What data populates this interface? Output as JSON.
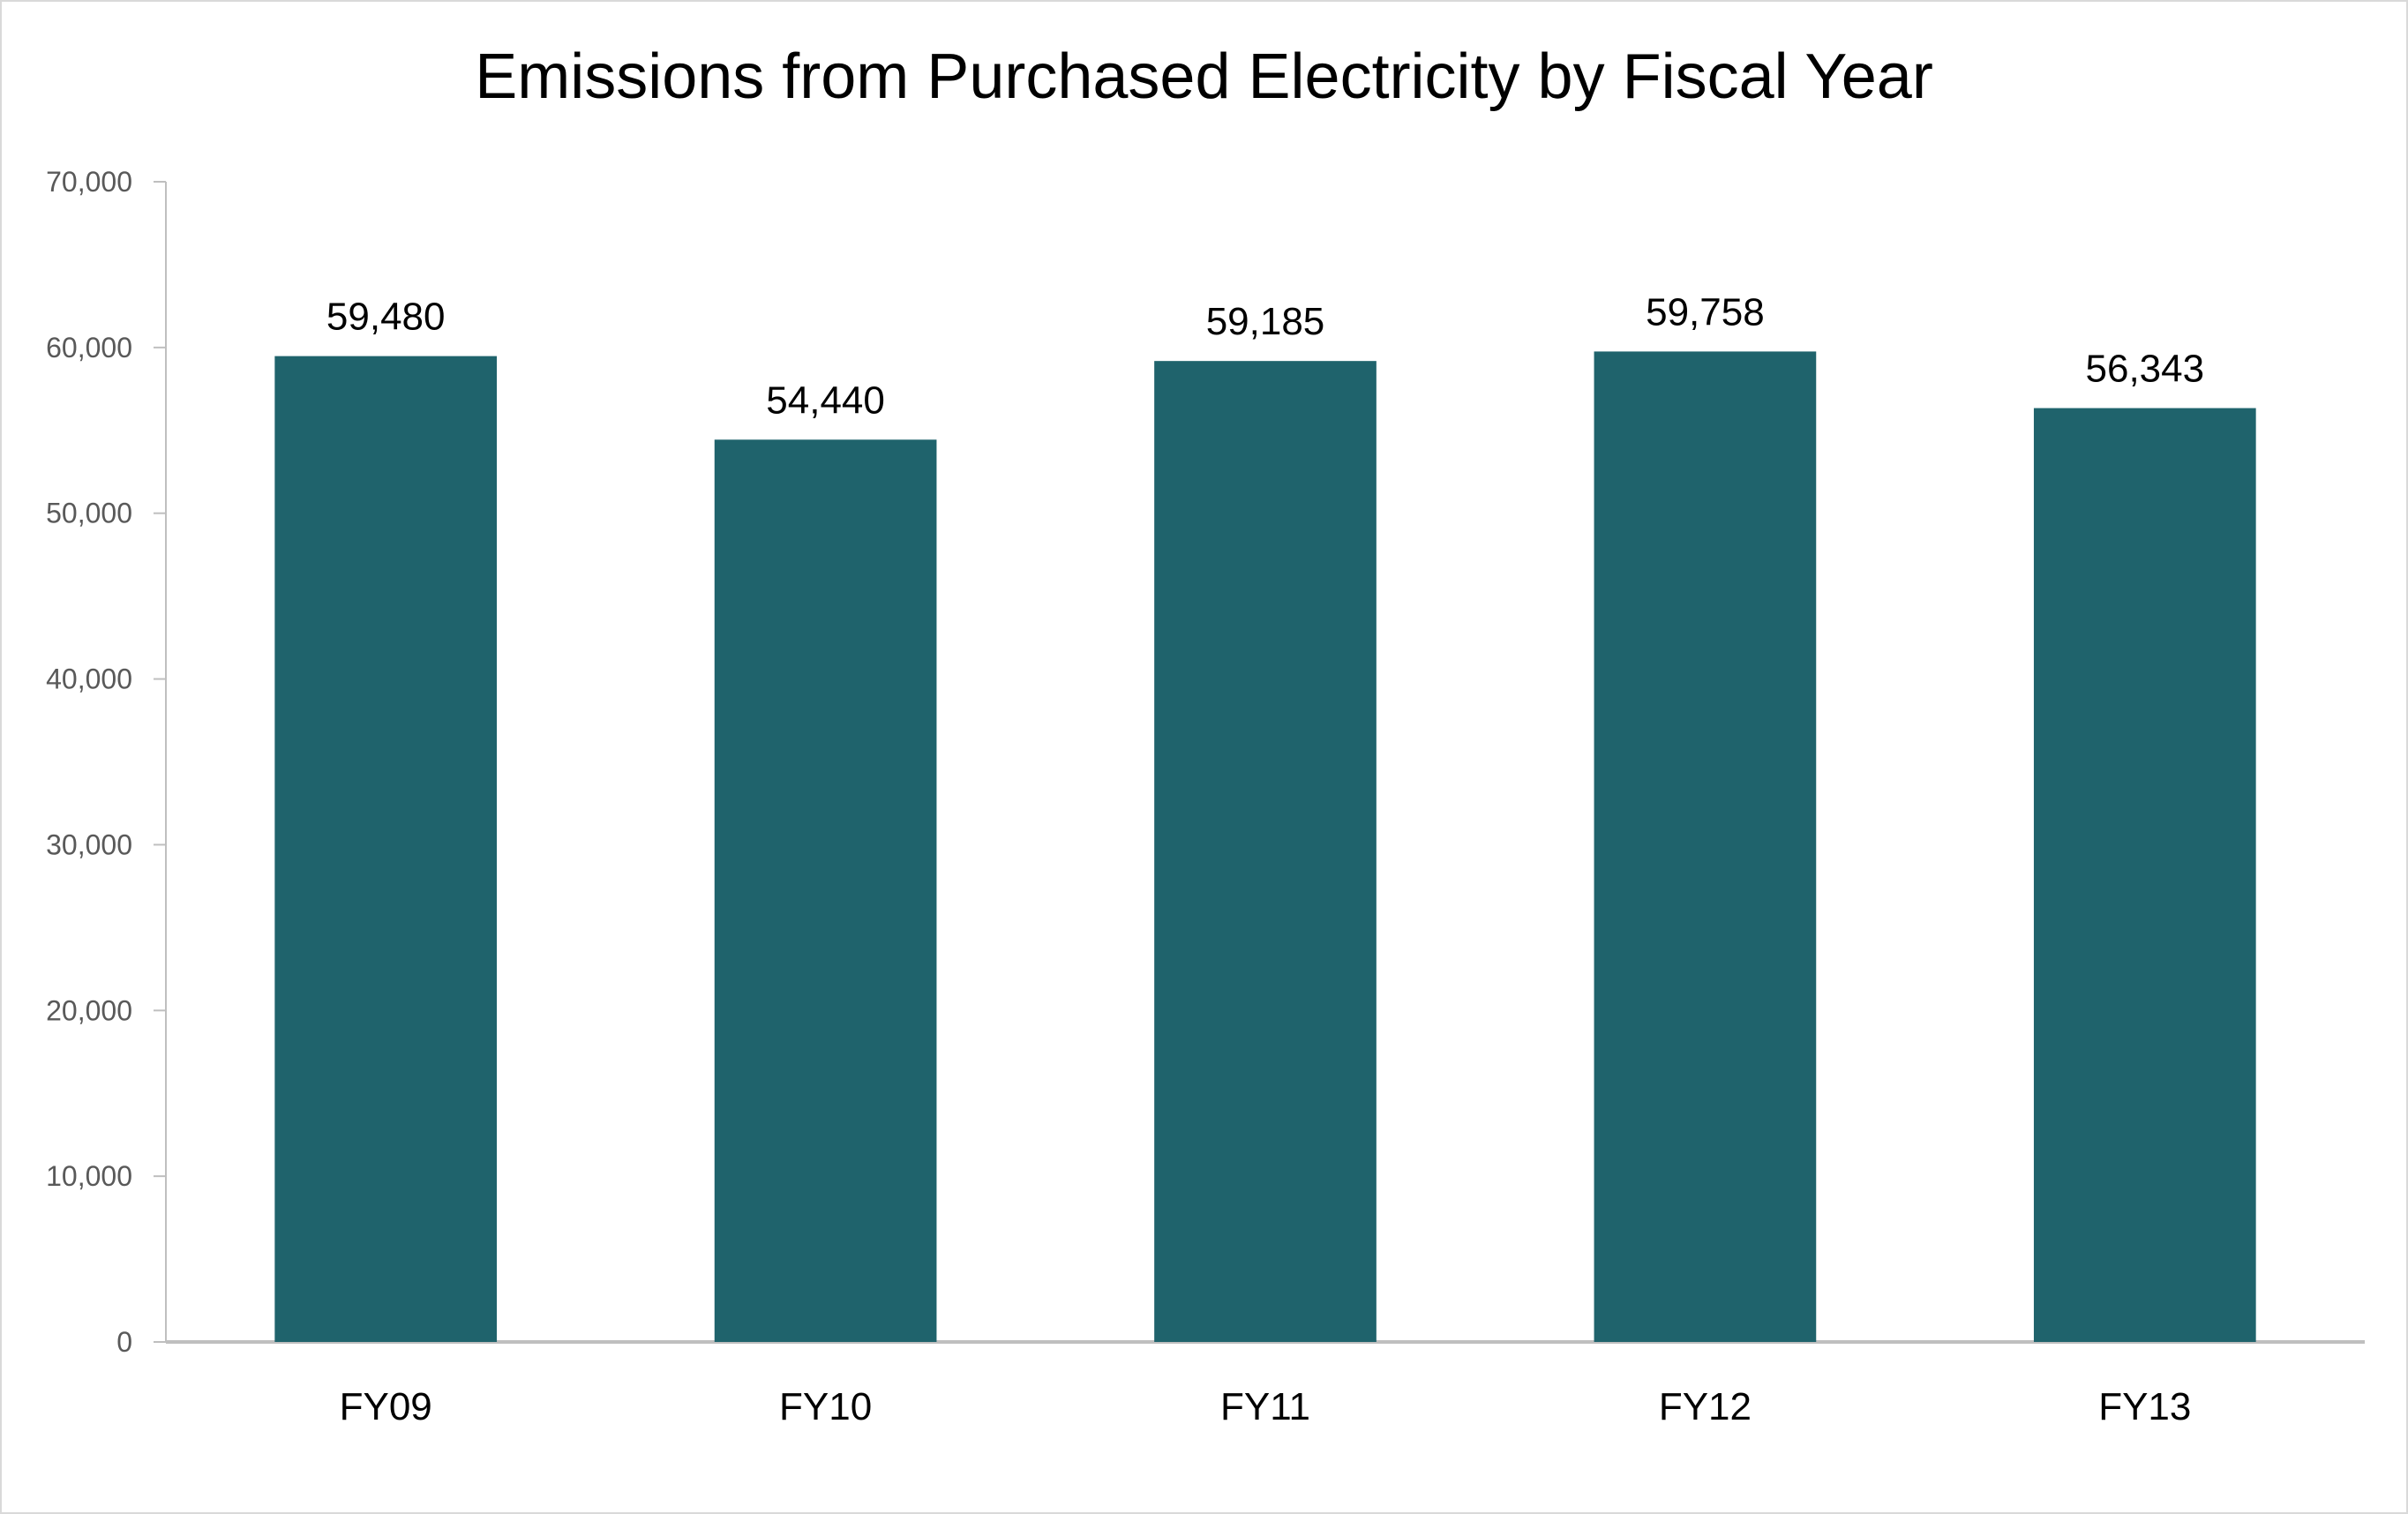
{
  "chart_data": {
    "type": "bar",
    "title": "Emissions from Purchased Electricity by Fiscal Year",
    "xlabel": "",
    "ylabel": "",
    "categories": [
      "FY09",
      "FY10",
      "FY11",
      "FY12",
      "FY13"
    ],
    "values": [
      59480,
      54440,
      59185,
      59758,
      56343
    ],
    "data_labels": [
      "59,480",
      "54,440",
      "59,185",
      "59,758",
      "56,343"
    ],
    "ylim": [
      0,
      70000
    ],
    "yticks": [
      0,
      10000,
      20000,
      30000,
      40000,
      50000,
      60000,
      70000
    ],
    "ytick_labels": [
      "0",
      "10,000",
      "20,000",
      "30,000",
      "40,000",
      "50,000",
      "60,000",
      "70,000"
    ],
    "grid": false,
    "legend": "none",
    "bar_color": "#1f636c",
    "axis_color": "#bfbfbf"
  }
}
